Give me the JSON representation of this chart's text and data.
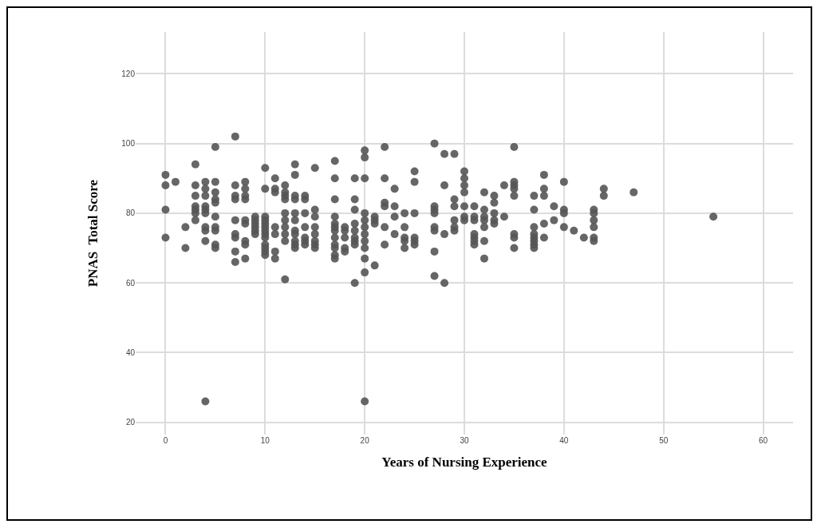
{
  "chart_data": {
    "type": "scatter",
    "xlabel": "Years of Nursing Experience",
    "ylabel": "PNAS  Total Score",
    "marker": "circle",
    "grid": true,
    "color": "#555555",
    "xlim": [
      -3,
      63
    ],
    "xticks": [
      0,
      10,
      20,
      30,
      40,
      50,
      60
    ],
    "ylim": [
      16.5,
      132
    ],
    "yticks": [
      20,
      40,
      60,
      80,
      100,
      120
    ],
    "x": [
      0,
      0,
      0,
      0,
      1,
      2,
      2,
      3,
      3,
      3,
      3,
      3,
      3,
      3,
      4,
      4,
      4,
      4,
      4,
      4,
      4,
      4,
      4,
      4,
      5,
      5,
      5,
      5,
      5,
      5,
      5,
      5,
      5,
      5,
      7,
      7,
      7,
      7,
      7,
      7,
      7,
      7,
      7,
      8,
      8,
      8,
      8,
      8,
      8,
      8,
      8,
      8,
      9,
      9,
      9,
      9,
      9,
      9,
      10,
      10,
      10,
      10,
      10,
      10,
      10,
      10,
      10,
      10,
      10,
      10,
      10,
      11,
      11,
      11,
      11,
      11,
      11,
      11,
      12,
      12,
      12,
      12,
      12,
      12,
      12,
      12,
      12,
      12,
      13,
      13,
      13,
      13,
      13,
      13,
      13,
      13,
      13,
      13,
      13,
      14,
      14,
      14,
      14,
      14,
      14,
      14,
      15,
      15,
      15,
      15,
      15,
      15,
      15,
      15,
      17,
      17,
      17,
      17,
      17,
      17,
      17,
      17,
      17,
      17,
      17,
      17,
      18,
      18,
      18,
      18,
      18,
      19,
      19,
      19,
      19,
      19,
      19,
      19,
      19,
      19,
      20,
      20,
      20,
      20,
      20,
      20,
      20,
      20,
      20,
      20,
      20,
      20,
      21,
      21,
      21,
      21,
      22,
      22,
      22,
      22,
      22,
      22,
      23,
      23,
      23,
      23,
      24,
      24,
      24,
      24,
      24,
      25,
      25,
      25,
      25,
      25,
      25,
      27,
      27,
      27,
      27,
      27,
      27,
      27,
      27,
      28,
      28,
      28,
      28,
      29,
      29,
      29,
      29,
      29,
      29,
      30,
      30,
      30,
      30,
      30,
      30,
      30,
      31,
      31,
      31,
      31,
      31,
      31,
      31,
      32,
      32,
      32,
      32,
      32,
      32,
      32,
      33,
      33,
      33,
      33,
      33,
      34,
      34,
      35,
      35,
      35,
      35,
      35,
      35,
      35,
      35,
      37,
      37,
      37,
      37,
      37,
      37,
      37,
      37,
      38,
      38,
      38,
      38,
      38,
      39,
      39,
      40,
      40,
      40,
      40,
      41,
      42,
      43,
      43,
      43,
      43,
      43,
      43,
      44,
      44,
      47,
      55
    ],
    "values": [
      91,
      88,
      81,
      73,
      89,
      76,
      70,
      94,
      88,
      85,
      82,
      81,
      80,
      78,
      89,
      87,
      85,
      82,
      81,
      80,
      76,
      75,
      72,
      26,
      99,
      89,
      86,
      84,
      83,
      79,
      76,
      75,
      71,
      70,
      102,
      88,
      85,
      84,
      78,
      74,
      73,
      69,
      66,
      89,
      87,
      85,
      84,
      78,
      77,
      72,
      71,
      67,
      79,
      78,
      77,
      76,
      75,
      74,
      93,
      87,
      79,
      78,
      77,
      76,
      75,
      74,
      73,
      71,
      70,
      69,
      68,
      90,
      87,
      86,
      76,
      74,
      69,
      67,
      88,
      86,
      85,
      84,
      80,
      78,
      76,
      74,
      72,
      61,
      94,
      91,
      85,
      84,
      80,
      78,
      75,
      74,
      72,
      71,
      70,
      85,
      84,
      80,
      76,
      73,
      72,
      71,
      93,
      81,
      79,
      76,
      74,
      72,
      71,
      70,
      95,
      90,
      84,
      79,
      77,
      76,
      75,
      73,
      71,
      70,
      68,
      67,
      76,
      75,
      73,
      70,
      69,
      90,
      84,
      81,
      77,
      75,
      73,
      72,
      71,
      60,
      98,
      96,
      90,
      80,
      78,
      76,
      74,
      72,
      70,
      67,
      63,
      26,
      79,
      78,
      77,
      65,
      99,
      90,
      83,
      82,
      76,
      71,
      87,
      82,
      79,
      74,
      80,
      76,
      73,
      72,
      70,
      92,
      89,
      80,
      73,
      72,
      71,
      100,
      82,
      81,
      80,
      76,
      75,
      69,
      62,
      97,
      88,
      74,
      60,
      97,
      84,
      82,
      78,
      76,
      75,
      92,
      90,
      88,
      86,
      82,
      79,
      78,
      82,
      79,
      78,
      74,
      73,
      72,
      71,
      86,
      81,
      79,
      78,
      76,
      72,
      67,
      85,
      83,
      80,
      78,
      77,
      88,
      79,
      99,
      89,
      88,
      87,
      85,
      74,
      73,
      70,
      85,
      81,
      76,
      74,
      73,
      72,
      71,
      70,
      91,
      87,
      85,
      77,
      73,
      82,
      78,
      89,
      81,
      80,
      76,
      75,
      73,
      81,
      80,
      78,
      76,
      73,
      72,
      87,
      85,
      86,
      79
    ]
  }
}
